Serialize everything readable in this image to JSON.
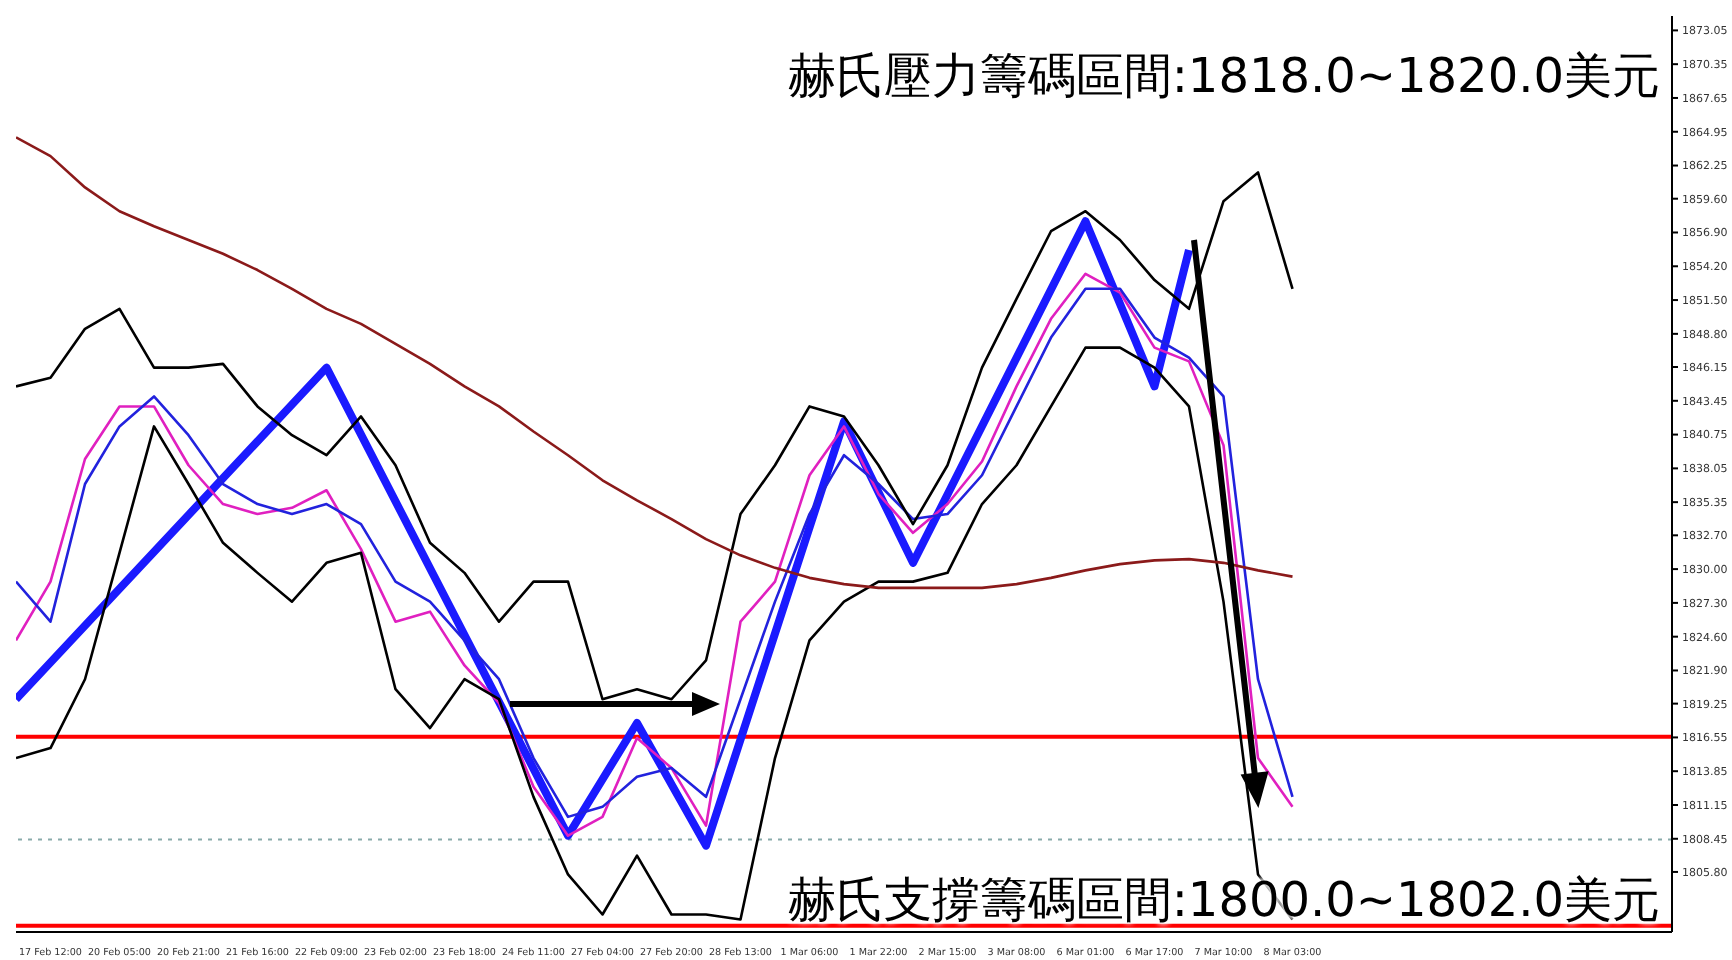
{
  "chart_data": {
    "type": "line",
    "annotations": [
      "赫氏壓力籌碼區間:1818.0~1820.0美元",
      "赫氏支撐籌碼區間:1800.0~1802.0美元"
    ],
    "categories": [
      null,
      "17 Feb 12:00",
      null,
      "20 Feb 05:00",
      null,
      "20 Feb 21:00",
      null,
      "21 Feb 16:00",
      null,
      "22 Feb 09:00",
      null,
      "23 Feb 02:00",
      null,
      "23 Feb 18:00",
      null,
      "24 Feb 11:00",
      null,
      "27 Feb 04:00",
      null,
      "27 Feb 20:00",
      null,
      "28 Feb 13:00",
      null,
      "1 Mar 06:00",
      null,
      "1 Mar 22:00",
      null,
      "2 Mar 15:00",
      null,
      "3 Mar 08:00",
      null,
      "6 Mar 01:00",
      null,
      "6 Mar 17:00",
      null,
      "7 Mar 10:00",
      null,
      "8 Mar 03:00",
      null,
      null,
      null,
      null,
      null,
      null,
      null,
      null,
      null,
      null,
      null
    ],
    "series": [
      {
        "color": "#8b1a1a",
        "values": [
          1864.5,
          1863.0,
          1860.5,
          1858.6,
          1857.4,
          1856.3,
          1855.2,
          1853.9,
          1852.4,
          1850.8,
          1849.6,
          1848.0,
          1846.4,
          1844.6,
          1843.0,
          1841.0,
          1839.1,
          1837.1,
          1835.5,
          1834.0,
          1832.4,
          1831.1,
          1830.1,
          1829.3,
          1828.8,
          1828.5,
          1828.5,
          1828.5,
          1828.5,
          1828.8,
          1829.3,
          1829.9,
          1830.4,
          1830.7,
          1830.8,
          1830.5,
          1829.9,
          1829.4,
          null,
          null,
          null,
          null,
          null,
          null,
          null,
          null,
          null,
          null,
          null
        ]
      },
      {
        "color": "#000000",
        "values": [
          1844.6,
          1845.3,
          1849.2,
          1850.8,
          1846.1,
          1846.1,
          1846.4,
          1843.0,
          1840.7,
          1839.1,
          1842.2,
          1838.3,
          1832.1,
          1829.7,
          1825.8,
          1829.0,
          1829.0,
          1819.6,
          1820.4,
          1819.6,
          1822.7,
          1834.4,
          1838.3,
          1843.0,
          1842.2,
          1838.3,
          1833.6,
          1838.3,
          1846.1,
          1851.6,
          1857.0,
          1858.6,
          1856.3,
          1853.1,
          1850.8,
          1859.4,
          1861.7,
          1852.4,
          null,
          null,
          null,
          null,
          null,
          null,
          null,
          null,
          null,
          null,
          null
        ]
      },
      {
        "color": "#000000",
        "values": [
          1814.9,
          1815.7,
          1821.2,
          1831.3,
          1841.4,
          1836.8,
          1832.1,
          1829.7,
          1827.4,
          1830.5,
          1831.3,
          1820.4,
          1817.3,
          1821.2,
          1819.6,
          1811.8,
          1805.6,
          1802.4,
          1807.1,
          1802.4,
          1802.4,
          1802.0,
          1814.9,
          1824.3,
          1827.4,
          1829.0,
          1829.0,
          1829.7,
          1835.2,
          1838.3,
          1843.0,
          1847.7,
          1847.7,
          1846.1,
          1843.0,
          1827.4,
          1805.6,
          1802.0,
          null,
          null,
          null,
          null,
          null,
          null,
          null,
          null,
          null,
          null,
          null
        ]
      },
      {
        "color": "#2222dd",
        "values": [
          1829.0,
          1825.8,
          1836.8,
          1841.4,
          1843.8,
          1840.7,
          1836.8,
          1835.2,
          1834.4,
          1835.2,
          1833.6,
          1829.0,
          1827.4,
          1824.3,
          1821.2,
          1814.9,
          1810.2,
          1811.0,
          1813.4,
          1814.1,
          1811.8,
          1819.6,
          1827.4,
          1834.4,
          1839.1,
          1836.8,
          1834.0,
          1834.4,
          1837.5,
          1843.0,
          1848.5,
          1852.4,
          1852.4,
          1848.5,
          1846.9,
          1843.8,
          1821.2,
          1811.8,
          null,
          null,
          null,
          null,
          null,
          null,
          null,
          null,
          null,
          null,
          null
        ]
      },
      {
        "color": "#e020c0",
        "values": [
          1824.3,
          1829.0,
          1838.8,
          1843.0,
          1843.0,
          1838.3,
          1835.2,
          1834.4,
          1834.9,
          1836.3,
          1831.6,
          1825.8,
          1826.6,
          1822.3,
          1819.3,
          1812.6,
          1808.7,
          1810.2,
          1816.5,
          1814.1,
          1809.5,
          1825.8,
          1829.0,
          1837.5,
          1841.4,
          1836.0,
          1832.9,
          1835.2,
          1838.6,
          1844.6,
          1850.0,
          1853.6,
          1852.1,
          1847.7,
          1846.6,
          1839.9,
          1814.9,
          1811.0,
          null,
          null,
          null,
          null,
          null,
          null,
          null,
          null,
          null,
          null,
          null
        ]
      },
      {
        "color": "#1a1aff",
        "values": [
          1819.6,
          null,
          null,
          null,
          null,
          null,
          null,
          null,
          null,
          1846.1,
          null,
          null,
          null,
          null,
          null,
          null,
          1808.7,
          null,
          1817.7,
          null,
          1807.9,
          null,
          null,
          null,
          1841.8,
          null,
          1830.5,
          null,
          null,
          null,
          null,
          1857.8,
          null,
          1844.6,
          1855.5,
          null,
          null,
          null,
          null,
          null,
          null,
          null,
          null,
          null,
          null,
          null,
          null,
          null,
          null
        ]
      }
    ],
    "ylim": [
      1801.0,
      1874.2
    ],
    "yticks": [
      1873.05,
      1870.35,
      1867.65,
      1864.95,
      1862.25,
      {
        "value": 1859.6,
        "label": "1859.60"
      },
      {
        "value": 1856.9,
        "label": "1856.90"
      },
      {
        "value": 1854.2,
        "label": "1854.20"
      },
      {
        "value": 1851.5,
        "label": "1851.50"
      },
      {
        "value": 1848.8,
        "label": "1848.80"
      },
      1846.15,
      1843.45,
      1840.75,
      1838.05,
      1835.35,
      {
        "value": 1832.7,
        "label": "1832.70"
      },
      {
        "value": 1830.0,
        "label": "1830.00"
      },
      {
        "value": 1827.3,
        "label": "1827.30"
      },
      {
        "value": 1824.6,
        "label": "1824.60"
      },
      {
        "value": 1821.9,
        "label": "1821.90"
      },
      1819.25,
      1816.55,
      1813.85,
      1811.15,
      1808.45,
      {
        "value": 1805.8,
        "label": "1805.80"
      }
    ],
    "ref_lines": [
      {
        "axis": "y",
        "value": 1816.6,
        "color": "#ff0000"
      },
      {
        "axis": "y",
        "value": 1808.4,
        "color": "#88aaaa",
        "line_style": "dotted"
      },
      {
        "axis": "y",
        "value": 1801.5,
        "color": "#ff0000"
      }
    ],
    "grid": false,
    "legend": false,
    "marker": "none"
  }
}
